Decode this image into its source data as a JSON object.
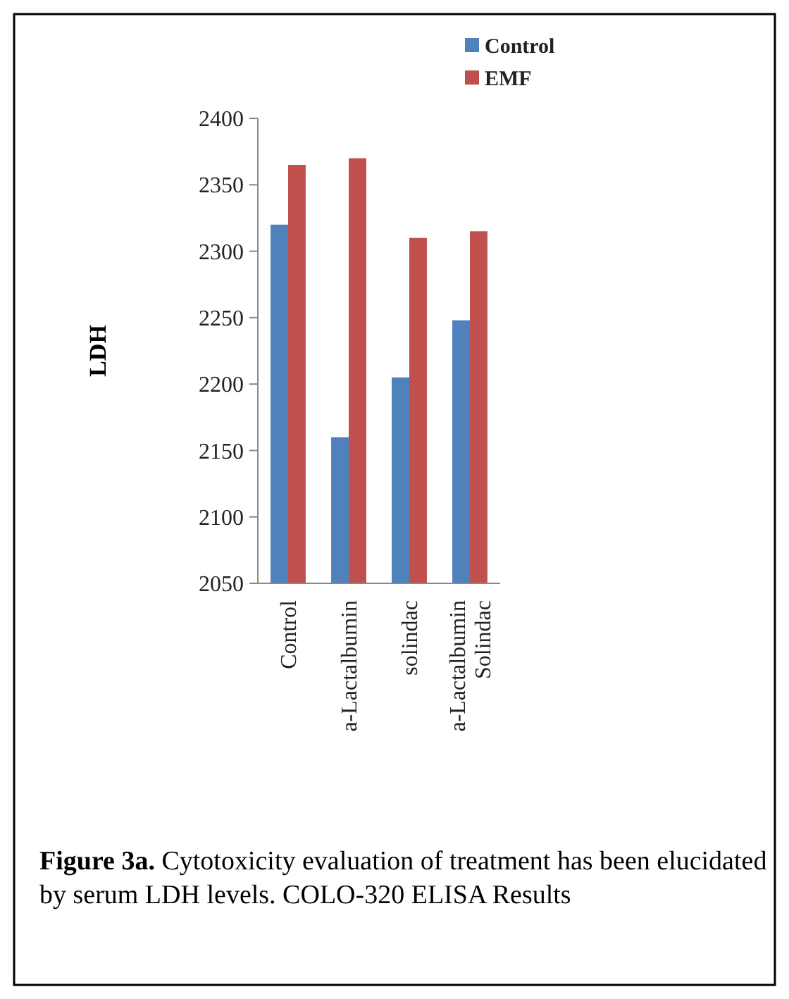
{
  "chart_data": {
    "type": "bar",
    "ylabel": "LDH",
    "categories": [
      "Control",
      "a-Lactalbumin",
      "solindac",
      "a-Lactalbumin\nSolindac"
    ],
    "series": [
      {
        "name": "Control",
        "color": "#4f81bd",
        "values": [
          2320,
          2160,
          2205,
          2248
        ]
      },
      {
        "name": "EMF",
        "color": "#c0504d",
        "values": [
          2365,
          2370,
          2310,
          2315
        ]
      }
    ],
    "ylim": [
      2050,
      2400
    ],
    "yticks": [
      2050,
      2100,
      2150,
      2200,
      2250,
      2300,
      2350,
      2400
    ],
    "grid": false,
    "legend": "top right",
    "annotations": [
      "Figure 3a.",
      "Cytotoxicity evaluation of treatment has been elucidated by serum LDH levels. COLO-320 ELISA Results"
    ]
  }
}
